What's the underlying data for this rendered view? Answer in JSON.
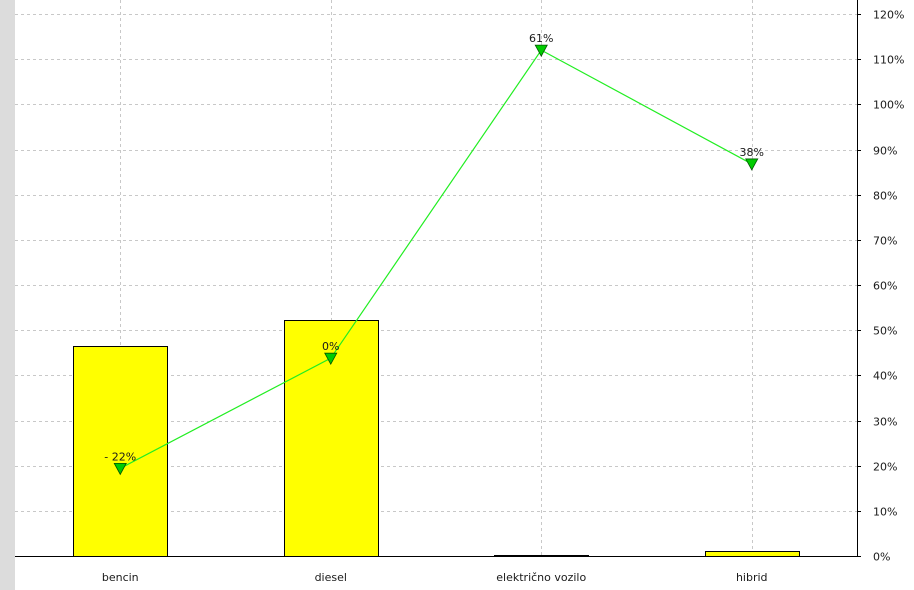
{
  "chart_data": {
    "type": "bar",
    "categories": [
      "bencin",
      "diesel",
      "električno vozilo",
      "hibrid"
    ],
    "series": [
      {
        "kind": "bar",
        "values": [
          46.5,
          52.3,
          0.3,
          1.0
        ],
        "color": "#ffff00"
      },
      {
        "kind": "line",
        "values": [
          19.4,
          43.8,
          112.0,
          86.8
        ],
        "point_labels": [
          "- 22%",
          "0%",
          "61%",
          "38%"
        ],
        "color": "#22ee22",
        "marker": "down-triangle"
      }
    ],
    "y_axis": {
      "position": "right",
      "min": 0,
      "max": 120,
      "step": 10,
      "tick_labels": [
        "0%",
        "10%",
        "20%",
        "30%",
        "40%",
        "50%",
        "60%",
        "70%",
        "80%",
        "90%",
        "100%",
        "110%",
        "120%"
      ]
    },
    "grid": true,
    "xlabel": "",
    "ylabel": "",
    "title": ""
  }
}
